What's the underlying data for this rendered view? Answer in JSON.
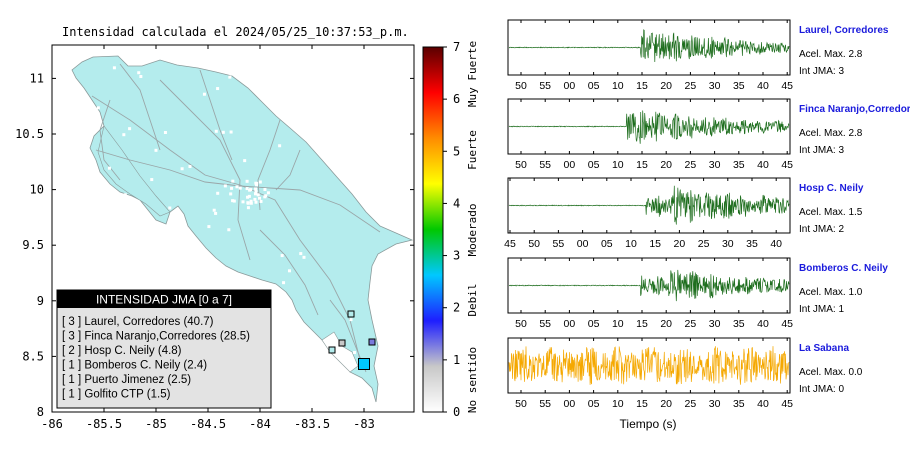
{
  "map": {
    "title": "Intensidad calculada el 2024/05/25_10:37:53_p.m.",
    "background_color": "#b4eced",
    "x_ticks": [
      "-86",
      "-85.5",
      "-85",
      "-84.5",
      "-84",
      "-83.5",
      "-83"
    ],
    "y_ticks": [
      "8",
      "8.5",
      "9",
      "9.5",
      "10",
      "10.5",
      "11"
    ],
    "legend": {
      "title": "INTENSIDAD JMA [0 a 7]",
      "entries": [
        "[ 3 ]  Laurel, Corredores (40.7)",
        "[ 3 ]  Finca Naranjo,Corredores (28.5)",
        "[ 2 ]  Hosp C. Neily (4.8)",
        "[ 1 ]  Bomberos C. Neily (2.4)",
        "[ 1 ]  Puerto Jimenez (2.5)",
        "[ 1 ]  Golfito CTP (1.5)"
      ]
    }
  },
  "colorbar": {
    "ticks": [
      "0",
      "1",
      "2",
      "3",
      "4",
      "5",
      "6",
      "7"
    ],
    "labels": [
      "No sentido",
      "Debil",
      "Moderado",
      "Fuerte",
      "Muy Fuerte"
    ],
    "colors": [
      "#ffffff",
      "#c8c8c8",
      "#1e1eff",
      "#00c8ff",
      "#00c800",
      "#ffff00",
      "#ff8c00",
      "#ff0000",
      "#5a0000"
    ]
  },
  "chart_data": {
    "type": "line",
    "xlabel": "Tiempo (s)",
    "stations": [
      {
        "name": "Laurel, Corredores",
        "accel": "Acel. Max. 2.8",
        "jma": "Int JMA: 3",
        "color": "#1e6e1e",
        "ticks": [
          "50",
          "55",
          "00",
          "05",
          "10",
          "15",
          "20",
          "25",
          "30",
          "35",
          "40",
          "45"
        ],
        "onset": 0.47
      },
      {
        "name": "Finca Naranjo,Corredor",
        "accel": "Acel. Max. 2.8",
        "jma": "Int JMA: 3",
        "color": "#1e6e1e",
        "ticks": [
          "50",
          "55",
          "00",
          "05",
          "10",
          "15",
          "20",
          "25",
          "30",
          "35",
          "40",
          "45"
        ],
        "onset": 0.42
      },
      {
        "name": "Hosp C. Neily",
        "accel": "Acel. Max. 1.5",
        "jma": "Int JMA: 2",
        "color": "#1e6e1e",
        "ticks": [
          "45",
          "50",
          "55",
          "00",
          "05",
          "10",
          "15",
          "20",
          "25",
          "30",
          "35",
          "40"
        ],
        "onset": 0.49
      },
      {
        "name": "Bomberos C. Neily",
        "accel": "Acel. Max. 1.0",
        "jma": "Int JMA: 1",
        "color": "#1e6e1e",
        "ticks": [
          "50",
          "55",
          "00",
          "05",
          "10",
          "15",
          "20",
          "25",
          "30",
          "35",
          "40",
          "45"
        ],
        "onset": 0.47
      },
      {
        "name": "La Sabana",
        "accel": "Acel. Max. 0.0",
        "jma": "Int JMA: 0",
        "color": "#f5a800",
        "ticks": [
          "50",
          "55",
          "00",
          "05",
          "10",
          "15",
          "20",
          "25",
          "30",
          "35",
          "40",
          "45"
        ],
        "onset": 0.0
      }
    ]
  }
}
